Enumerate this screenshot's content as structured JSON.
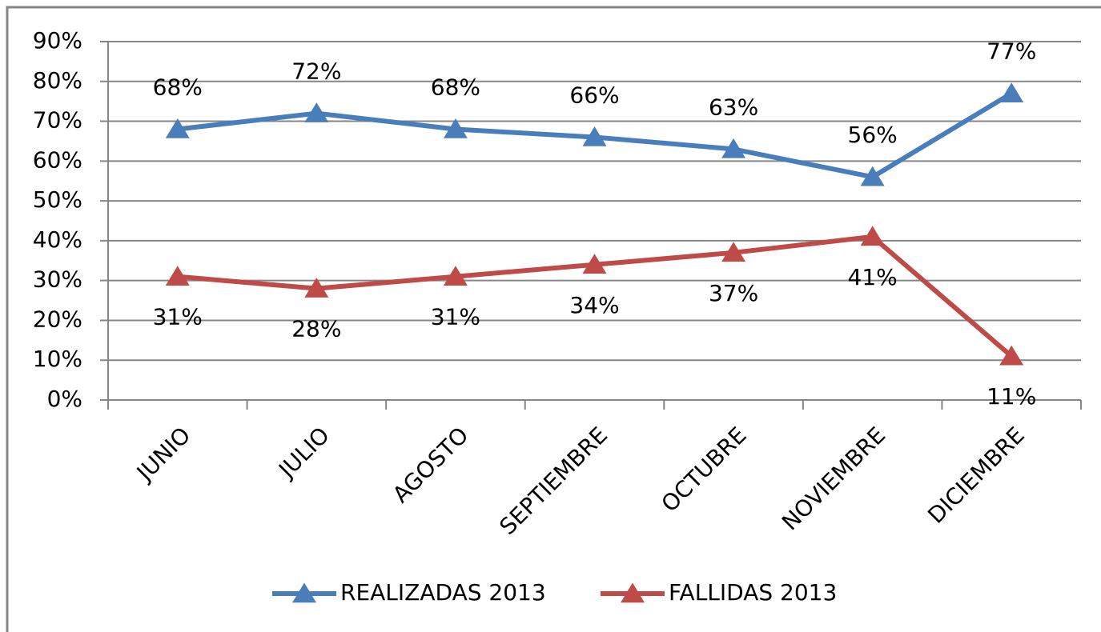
{
  "chart_data": {
    "type": "line",
    "categories": [
      "JUNIO",
      "JULIO",
      "AGOSTO",
      "SEPTIEMBRE",
      "OCTUBRE",
      "NOVIEMBRE",
      "DICIEMBRE"
    ],
    "series": [
      {
        "name": "REALIZADAS 2013",
        "color": "#4a7ebb",
        "values": [
          68,
          72,
          68,
          66,
          63,
          56,
          77
        ],
        "value_labels": [
          "68%",
          "72%",
          "68%",
          "66%",
          "63%",
          "56%",
          "77%"
        ]
      },
      {
        "name": "FALLIDAS 2013",
        "color": "#be4b48",
        "values": [
          31,
          28,
          31,
          34,
          37,
          41,
          11
        ],
        "value_labels": [
          "31%",
          "28%",
          "31%",
          "34%",
          "37%",
          "41%",
          "11%"
        ]
      }
    ],
    "ylim": [
      0,
      90
    ],
    "yticks": [
      {
        "value": 0,
        "label": "0%"
      },
      {
        "value": 10,
        "label": "10%"
      },
      {
        "value": 20,
        "label": "20%"
      },
      {
        "value": 30,
        "label": "30%"
      },
      {
        "value": 40,
        "label": "40%"
      },
      {
        "value": 50,
        "label": "50%"
      },
      {
        "value": 60,
        "label": "60%"
      },
      {
        "value": 70,
        "label": "70%"
      },
      {
        "value": 80,
        "label": "80%"
      },
      {
        "value": 90,
        "label": "90%"
      }
    ],
    "grid": true,
    "marker": "triangle",
    "legend": "bottom"
  }
}
